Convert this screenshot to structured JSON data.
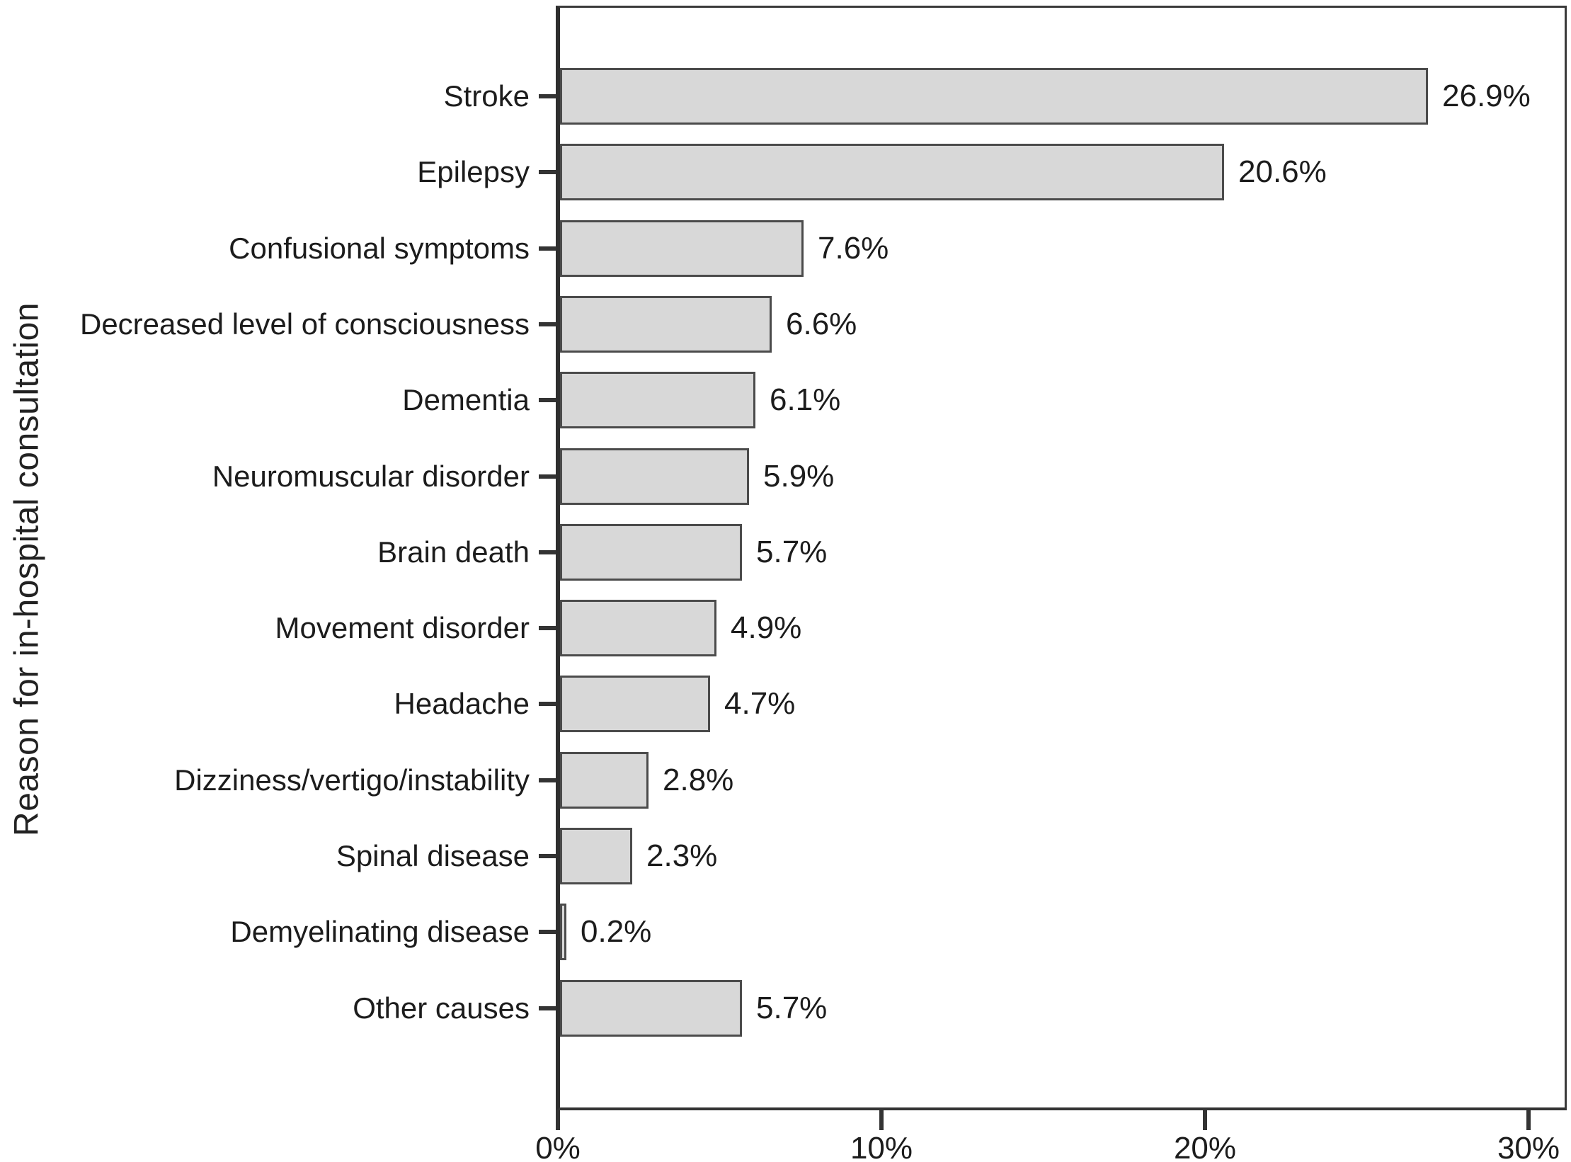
{
  "figure": {
    "y_axis_title": "Reason for in-hospital consultation"
  },
  "chart_data": {
    "type": "bar",
    "orientation": "horizontal",
    "title": "",
    "xlabel": "",
    "ylabel": "Reason for in-hospital consultation",
    "categories": [
      "Stroke",
      "Epilepsy",
      "Confusional symptoms",
      "Decreased level of consciousness",
      "Dementia",
      "Neuromuscular disorder",
      "Brain death",
      "Movement disorder",
      "Headache",
      "Dizziness/vertigo/instability",
      "Spinal disease",
      "Demyelinating disease",
      "Other causes"
    ],
    "values": [
      26.9,
      20.6,
      7.6,
      6.6,
      6.1,
      5.9,
      5.7,
      4.9,
      4.7,
      2.8,
      2.3,
      0.2,
      5.7
    ],
    "value_labels": [
      "26.9%",
      "20.6%",
      "7.6%",
      "6.6%",
      "6.1%",
      "5.9%",
      "5.7%",
      "4.9%",
      "4.7%",
      "2.8%",
      "2.3%",
      "0.2%",
      "5.7%"
    ],
    "x_ticks": [
      "0%",
      "10%",
      "20%",
      "30%"
    ],
    "x_tick_values": [
      0,
      10,
      20,
      30
    ],
    "xlim": [
      0,
      31.3
    ],
    "grid": false,
    "legend": "none",
    "bar_fill_color": "#d8d8d8",
    "bar_border_color": "#4b4b4b",
    "axis_color": "#333333",
    "text_color": "#1c1c1c"
  }
}
